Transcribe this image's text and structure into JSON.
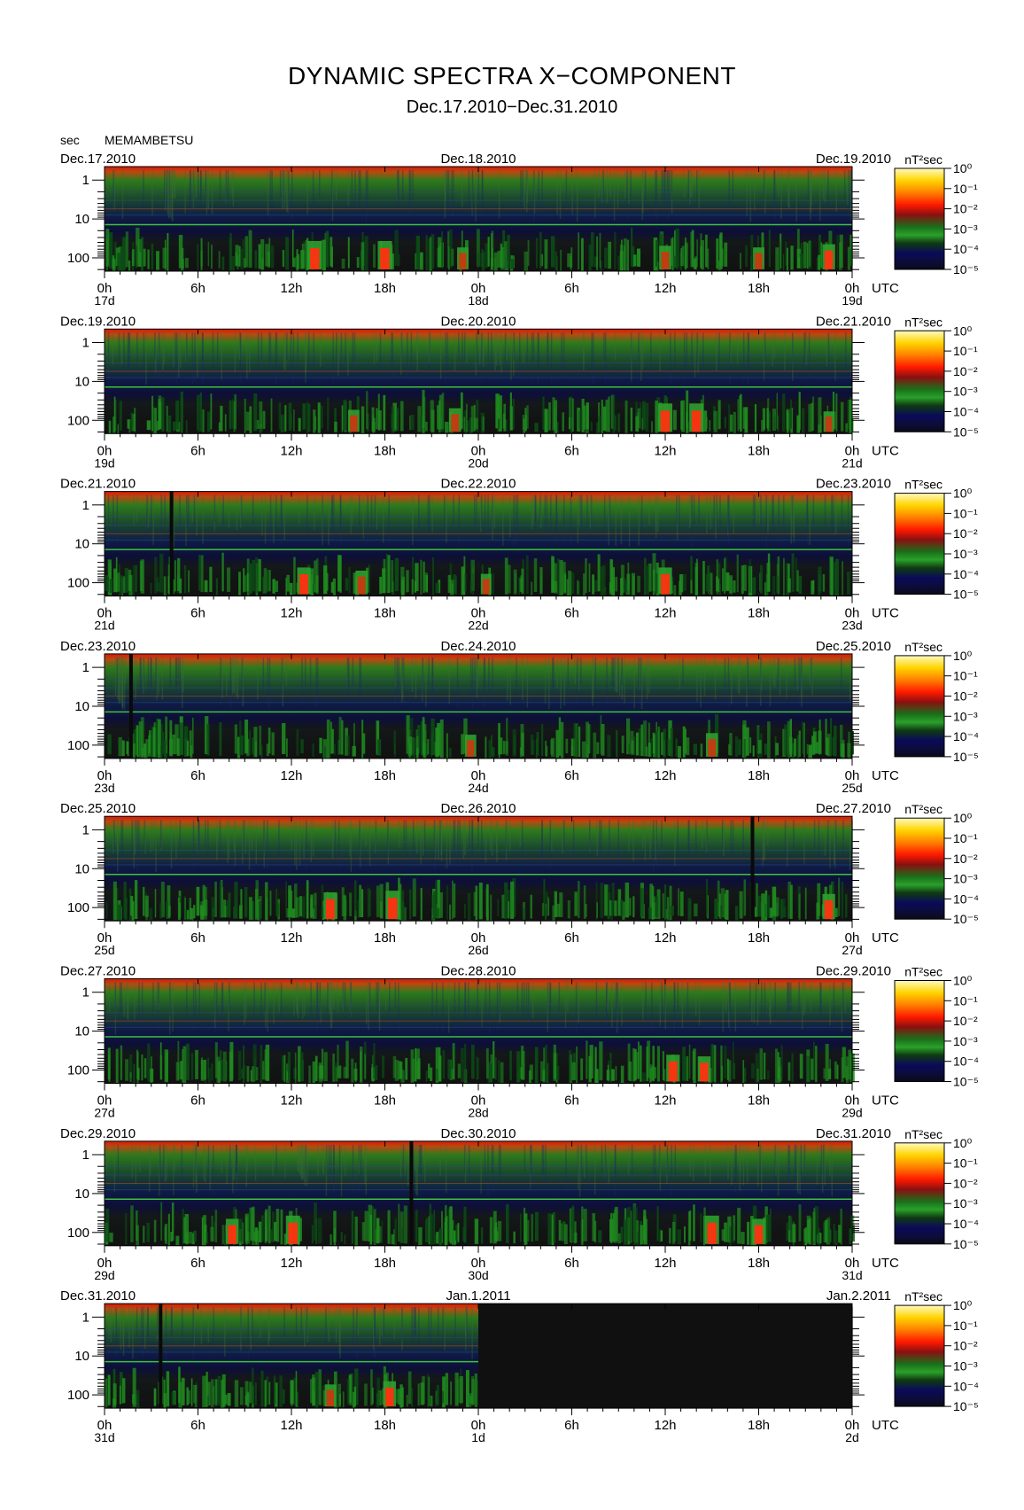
{
  "title": "DYNAMIC SPECTRA X−COMPONENT",
  "subtitle": "Dec.17.2010−Dec.31.2010",
  "y_unit": "sec",
  "station": "MEMAMBETSU",
  "colorbar_unit": "nT²sec",
  "utc_label": "UTC",
  "hour_labels": [
    "0h",
    "6h",
    "12h",
    "18h",
    "0h",
    "6h",
    "12h",
    "18h",
    "0h"
  ],
  "period_labels": [
    "1",
    "10",
    "100"
  ],
  "colorbar_labels": [
    "10⁰",
    "10⁻¹",
    "10⁻²",
    "10⁻³",
    "10⁻⁴",
    "10⁻⁵"
  ],
  "colors": {
    "scale": [
      "#ffff80",
      "#ffcc00",
      "#ff7700",
      "#ff2000",
      "#b01010",
      "#116611",
      "#22aa22",
      "#0a0a40",
      "#14145a",
      "#101010"
    ],
    "missing": "#101010"
  },
  "panels": [
    {
      "date_left": "Dec.17.2010",
      "date_mid": "Dec.18.2010",
      "date_right": "Dec.19.2010",
      "day_left": "17d",
      "day_mid": "18d",
      "day_right": "19d"
    },
    {
      "date_left": "Dec.19.2010",
      "date_mid": "Dec.20.2010",
      "date_right": "Dec.21.2010",
      "day_left": "19d",
      "day_mid": "20d",
      "day_right": "21d"
    },
    {
      "date_left": "Dec.21.2010",
      "date_mid": "Dec.22.2010",
      "date_right": "Dec.23.2010",
      "day_left": "21d",
      "day_mid": "22d",
      "day_right": "23d"
    },
    {
      "date_left": "Dec.23.2010",
      "date_mid": "Dec.24.2010",
      "date_right": "Dec.25.2010",
      "day_left": "23d",
      "day_mid": "24d",
      "day_right": "25d"
    },
    {
      "date_left": "Dec.25.2010",
      "date_mid": "Dec.26.2010",
      "date_right": "Dec.27.2010",
      "day_left": "25d",
      "day_mid": "26d",
      "day_right": "27d"
    },
    {
      "date_left": "Dec.27.2010",
      "date_mid": "Dec.28.2010",
      "date_right": "Dec.29.2010",
      "day_left": "27d",
      "day_mid": "28d",
      "day_right": "29d"
    },
    {
      "date_left": "Dec.29.2010",
      "date_mid": "Dec.30.2010",
      "date_right": "Dec.31.2010",
      "day_left": "29d",
      "day_mid": "30d",
      "day_right": "31d"
    },
    {
      "date_left": "Dec.31.2010",
      "date_mid": "Jan.1.2011",
      "date_right": "Jan.2.2011",
      "day_left": "31d",
      "day_mid": "1d",
      "day_right": "2d"
    }
  ],
  "chart_data": {
    "type": "heatmap",
    "title": "DYNAMIC SPECTRA X−COMPONENT",
    "subtitle": "Dec.17.2010−Dec.31.2010",
    "ylabel": "sec",
    "y_scale": "log",
    "y_ticks": [
      1,
      10,
      100
    ],
    "x_ticks": [
      "0h",
      "6h",
      "12h",
      "18h",
      "0h",
      "6h",
      "12h",
      "18h",
      "0h"
    ],
    "x_unit": "UTC",
    "colorbar": {
      "label": "nT²sec",
      "scale": "log",
      "range": [
        "10⁻⁵",
        "10⁰"
      ]
    },
    "panels": [
      {
        "start": "Dec.17.2010",
        "end": "Dec.19.2010",
        "hours": 48,
        "gaps": [],
        "missing_from_hour": null,
        "events": [
          {
            "hour": 13.5,
            "strength": 1.0
          },
          {
            "hour": 18.0,
            "strength": 1.0
          },
          {
            "hour": 23.0,
            "strength": 0.6
          },
          {
            "hour": 36.0,
            "strength": 0.7
          },
          {
            "hour": 42.0,
            "strength": 0.6
          },
          {
            "hour": 46.5,
            "strength": 0.8
          }
        ]
      },
      {
        "start": "Dec.19.2010",
        "end": "Dec.21.2010",
        "hours": 48,
        "gaps": [],
        "missing_from_hour": null,
        "events": [
          {
            "hour": 16.0,
            "strength": 0.6
          },
          {
            "hour": 22.5,
            "strength": 0.7
          },
          {
            "hour": 36.0,
            "strength": 1.0
          },
          {
            "hour": 38.0,
            "strength": 1.0
          },
          {
            "hour": 46.5,
            "strength": 0.5
          }
        ]
      },
      {
        "start": "Dec.21.2010",
        "end": "Dec.23.2010",
        "hours": 48,
        "gaps": [
          4.3
        ],
        "missing_from_hour": null,
        "events": [
          {
            "hour": 12.8,
            "strength": 0.9
          },
          {
            "hour": 16.5,
            "strength": 0.7
          },
          {
            "hour": 24.5,
            "strength": 0.5
          },
          {
            "hour": 36.0,
            "strength": 0.9
          }
        ]
      },
      {
        "start": "Dec.23.2010",
        "end": "Dec.25.2010",
        "hours": 48,
        "gaps": [
          1.7
        ],
        "missing_from_hour": null,
        "events": [
          {
            "hour": 23.5,
            "strength": 0.6
          },
          {
            "hour": 39.0,
            "strength": 0.7
          }
        ]
      },
      {
        "start": "Dec.25.2010",
        "end": "Dec.27.2010",
        "hours": 48,
        "gaps": [
          41.6
        ],
        "missing_from_hour": null,
        "events": [
          {
            "hour": 14.5,
            "strength": 0.9
          },
          {
            "hour": 18.5,
            "strength": 1.0
          },
          {
            "hour": 46.5,
            "strength": 0.8
          }
        ]
      },
      {
        "start": "Dec.27.2010",
        "end": "Dec.29.2010",
        "hours": 48,
        "gaps": [],
        "missing_from_hour": null,
        "events": [
          {
            "hour": 36.5,
            "strength": 0.9
          },
          {
            "hour": 38.5,
            "strength": 0.8
          }
        ]
      },
      {
        "start": "Dec.29.2010",
        "end": "Dec.31.2010",
        "hours": 48,
        "gaps": [
          19.7
        ],
        "missing_from_hour": null,
        "events": [
          {
            "hour": 8.2,
            "strength": 0.8
          },
          {
            "hour": 12.1,
            "strength": 1.0
          },
          {
            "hour": 39.0,
            "strength": 1.0
          },
          {
            "hour": 42.0,
            "strength": 0.8
          }
        ]
      },
      {
        "start": "Dec.31.2010",
        "end": "Jan.2.2011",
        "hours": 48,
        "gaps": [
          3.6
        ],
        "missing_from_hour": 24,
        "events": [
          {
            "hour": 14.5,
            "strength": 0.6
          },
          {
            "hour": 18.3,
            "strength": 0.8
          }
        ]
      }
    ]
  }
}
